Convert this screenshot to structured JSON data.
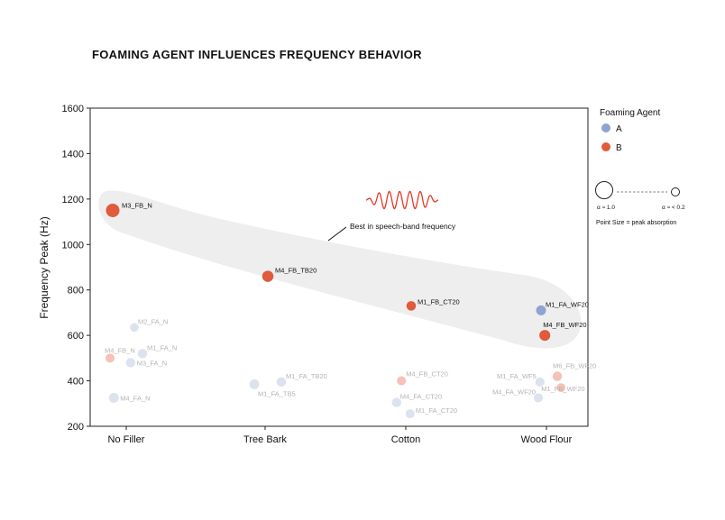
{
  "chart_data": {
    "type": "scatter",
    "title": "FOAMING AGENT INFLUENCES FREQUENCY BEHAVIOR",
    "ylabel": "Frequency Peak (Hz)",
    "xlabel": "",
    "categories": [
      "No Filler",
      "Tree Bark",
      "Cotton",
      "Wood Flour"
    ],
    "ylim": [
      200,
      1600
    ],
    "yticks": [
      "200",
      "400",
      "600",
      "800",
      "1000",
      "1200",
      "1400",
      "1600"
    ],
    "grid": false,
    "legend": {
      "title": "Foaming Agent",
      "placement": "right",
      "items": [
        {
          "label": "A",
          "color": "#8fa3d1"
        },
        {
          "label": "B",
          "color": "#e05a3e"
        }
      ],
      "size_large_label": "α ≈ 1.0",
      "size_small_label": "α ≈ < 0.2",
      "size_note": "Point Size = peak absorption"
    },
    "annotation": "Best in speech-band frequency",
    "colors": {
      "A_strong": "#8fa3d1",
      "A_faint": "#dde2ef",
      "B_strong": "#e05a3e",
      "B_faint": "#f4c2b6",
      "highlight_band": "#eeeeee",
      "wave": "#e53a28"
    },
    "points": [
      {
        "label": "M3_FB_N",
        "category": "No Filler",
        "offset": -0.25,
        "y": 1150,
        "agent": "B",
        "size": 1.0,
        "highlight": true
      },
      {
        "label": "M4_FB_TB20",
        "category": "Tree Bark",
        "offset": 0.05,
        "y": 860,
        "agent": "B",
        "size": 0.72,
        "highlight": true
      },
      {
        "label": "M1_FB_CT20",
        "category": "Cotton",
        "offset": 0.1,
        "y": 730,
        "agent": "B",
        "size": 0.5,
        "highlight": true
      },
      {
        "label": "M1_FA_WF20",
        "category": "Wood Flour",
        "offset": -0.1,
        "y": 710,
        "agent": "A",
        "size": 0.55,
        "highlight": true
      },
      {
        "label": "M4_FB_WF20",
        "category": "Wood Flour",
        "offset": -0.03,
        "y": 600,
        "agent": "B",
        "size": 0.68,
        "highlight": true
      },
      {
        "label": "M2_FA_N",
        "category": "No Filler",
        "offset": 0.15,
        "y": 635,
        "agent": "A",
        "size": 0.4,
        "highlight": false
      },
      {
        "label": "M1_FA_N",
        "category": "No Filler",
        "offset": 0.3,
        "y": 520,
        "agent": "A",
        "size": 0.5,
        "highlight": false
      },
      {
        "label": "M4_FB_N",
        "category": "No Filler",
        "offset": -0.3,
        "y": 500,
        "agent": "B",
        "size": 0.45,
        "highlight": false
      },
      {
        "label": "M3_FA_N",
        "category": "No Filler",
        "offset": 0.08,
        "y": 480,
        "agent": "A",
        "size": 0.5,
        "highlight": false
      },
      {
        "label": "M4_FA_N",
        "category": "No Filler",
        "offset": -0.23,
        "y": 325,
        "agent": "A",
        "size": 0.55,
        "highlight": false
      },
      {
        "label": "M1_FA_TB20",
        "category": "Tree Bark",
        "offset": 0.3,
        "y": 395,
        "agent": "A",
        "size": 0.5,
        "highlight": false
      },
      {
        "label": "M1_FA_TB5",
        "category": "Tree Bark",
        "offset": -0.2,
        "y": 385,
        "agent": "A",
        "size": 0.55,
        "highlight": false
      },
      {
        "label": "M4_FB_CT20",
        "category": "Cotton",
        "offset": -0.08,
        "y": 400,
        "agent": "B",
        "size": 0.45,
        "highlight": false
      },
      {
        "label": "M4_FA_CT20",
        "category": "Cotton",
        "offset": -0.17,
        "y": 305,
        "agent": "A",
        "size": 0.5,
        "highlight": false
      },
      {
        "label": "M1_FA_CT20",
        "category": "Cotton",
        "offset": 0.08,
        "y": 255,
        "agent": "A",
        "size": 0.45,
        "highlight": false
      },
      {
        "label": "M1_FA_WF5",
        "category": "Wood Flour",
        "offset": -0.12,
        "y": 395,
        "agent": "A",
        "size": 0.45,
        "highlight": false
      },
      {
        "label": "M6_FB_WF20",
        "category": "Wood Flour",
        "offset": 0.2,
        "y": 420,
        "agent": "B",
        "size": 0.5,
        "highlight": false
      },
      {
        "label": "M4_FA_WF20",
        "category": "Wood Flour",
        "offset": -0.15,
        "y": 325,
        "agent": "A",
        "size": 0.45,
        "highlight": false
      },
      {
        "label": "M1_FB_WF20",
        "category": "Wood Flour",
        "offset": 0.27,
        "y": 370,
        "agent": "B",
        "size": 0.42,
        "highlight": false
      }
    ]
  }
}
